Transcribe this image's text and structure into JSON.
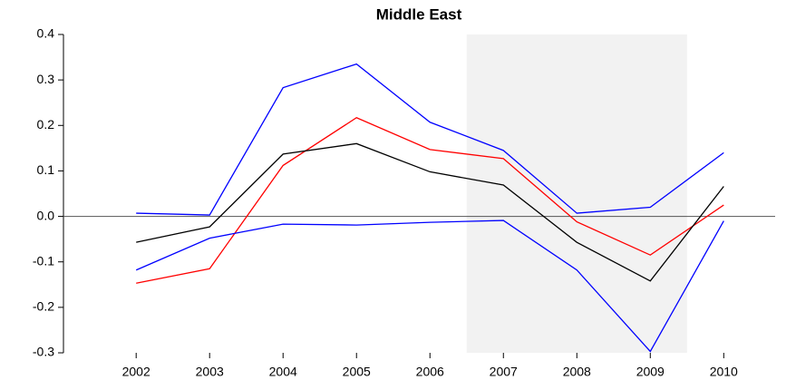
{
  "chart_data": {
    "type": "line",
    "title": "Middle East",
    "x": [
      2002,
      2003,
      2004,
      2005,
      2006,
      2007,
      2008,
      2009,
      2010
    ],
    "series": [
      {
        "color": "#0000ff",
        "values": [
          0.007,
          0.003,
          0.283,
          0.335,
          0.207,
          0.145,
          0.007,
          0.02,
          0.14
        ]
      },
      {
        "color": "#ff0000",
        "values": [
          -0.147,
          -0.115,
          0.112,
          0.217,
          0.147,
          0.127,
          -0.012,
          -0.085,
          0.025
        ]
      },
      {
        "color": "#000000",
        "values": [
          -0.057,
          -0.023,
          0.137,
          0.16,
          0.098,
          0.069,
          -0.057,
          -0.142,
          0.066
        ]
      },
      {
        "color": "#0000ff",
        "values": [
          -0.118,
          -0.048,
          -0.017,
          -0.019,
          -0.013,
          -0.009,
          -0.118,
          -0.297,
          -0.01
        ]
      }
    ],
    "xlim": [
      2001.01,
      2010.7
    ],
    "xticks": [
      2002,
      2003,
      2004,
      2005,
      2006,
      2007,
      2008,
      2009,
      2010
    ],
    "ylim": [
      -0.3,
      0.4
    ],
    "yticks": [
      -0.3,
      -0.2,
      -0.1,
      {
        "value": 0,
        "label": "0.0"
      },
      0.1,
      0.2,
      0.3,
      0.4
    ],
    "shaded_span": [
      2006.5,
      2009.5
    ],
    "shade_color": "#f2f2f2",
    "reference_line": 0
  }
}
